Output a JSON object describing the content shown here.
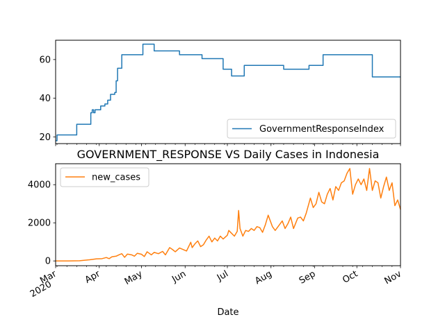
{
  "chart_data": [
    {
      "type": "line",
      "title": "",
      "xlabel": "",
      "ylabel": "",
      "x_range": [
        "2020-03-01",
        "2020-11-01"
      ],
      "ylim": [
        16.5,
        70
      ],
      "yticks": [
        20,
        40,
        60
      ],
      "legend": {
        "placement": "lower-right"
      },
      "series": [
        {
          "name": "GovernmentResponseIndex",
          "color": "#1f77b4",
          "step": true,
          "points": [
            [
              "2020-03-01",
              18.0
            ],
            [
              "2020-03-02",
              21.0
            ],
            [
              "2020-03-15",
              21.0
            ],
            [
              "2020-03-16",
              26.5
            ],
            [
              "2020-03-25",
              26.5
            ],
            [
              "2020-03-26",
              32.5
            ],
            [
              "2020-03-27",
              34.0
            ],
            [
              "2020-03-28",
              32.5
            ],
            [
              "2020-03-29",
              34.0
            ],
            [
              "2020-04-01",
              34.0
            ],
            [
              "2020-04-02",
              36.0
            ],
            [
              "2020-04-04",
              36.0
            ],
            [
              "2020-04-05",
              37.0
            ],
            [
              "2020-04-06",
              37.0
            ],
            [
              "2020-04-07",
              39.0
            ],
            [
              "2020-04-08",
              39.0
            ],
            [
              "2020-04-09",
              42.0
            ],
            [
              "2020-04-11",
              42.0
            ],
            [
              "2020-04-12",
              43.0
            ],
            [
              "2020-04-13",
              49.0
            ],
            [
              "2020-04-14",
              55.5
            ],
            [
              "2020-04-16",
              55.5
            ],
            [
              "2020-04-17",
              62.5
            ],
            [
              "2020-05-01",
              62.5
            ],
            [
              "2020-05-02",
              68.0
            ],
            [
              "2020-05-09",
              68.0
            ],
            [
              "2020-05-10",
              64.5
            ],
            [
              "2020-05-27",
              64.5
            ],
            [
              "2020-05-28",
              62.5
            ],
            [
              "2020-06-12",
              62.5
            ],
            [
              "2020-06-13",
              60.5
            ],
            [
              "2020-06-27",
              60.5
            ],
            [
              "2020-06-28",
              55.0
            ],
            [
              "2020-07-03",
              55.0
            ],
            [
              "2020-07-04",
              51.5
            ],
            [
              "2020-07-12",
              51.5
            ],
            [
              "2020-07-13",
              57.0
            ],
            [
              "2020-08-09",
              57.0
            ],
            [
              "2020-08-10",
              55.0
            ],
            [
              "2020-08-27",
              55.0
            ],
            [
              "2020-08-28",
              57.0
            ],
            [
              "2020-09-06",
              57.0
            ],
            [
              "2020-09-07",
              62.5
            ],
            [
              "2020-10-11",
              62.5
            ],
            [
              "2020-10-12",
              51.0
            ],
            [
              "2020-11-01",
              51.0
            ]
          ]
        }
      ]
    },
    {
      "type": "line",
      "title": "GOVERNMENT_RESPONSE VS Daily Cases in Indonesia",
      "xlabel": "Date",
      "ylabel": "",
      "x_range": [
        "2020-03-01",
        "2020-11-01"
      ],
      "ylim": [
        -250,
        5100
      ],
      "yticks": [
        0,
        2000,
        4000
      ],
      "legend": {
        "placement": "upper-left"
      },
      "xtick_labels": [
        {
          "label": "Mar",
          "sub": "2020",
          "date": "2020-03-01"
        },
        {
          "label": "Apr",
          "date": "2020-04-01"
        },
        {
          "label": "May",
          "date": "2020-05-01"
        },
        {
          "label": "Jun",
          "date": "2020-06-01"
        },
        {
          "label": "Jul",
          "date": "2020-07-01"
        },
        {
          "label": "Aug",
          "date": "2020-08-01"
        },
        {
          "label": "Sep",
          "date": "2020-09-01"
        },
        {
          "label": "Oct",
          "date": "2020-10-01"
        },
        {
          "label": "Nov",
          "date": "2020-11-01"
        }
      ],
      "series": [
        {
          "name": "new_cases",
          "color": "#ff7f0e",
          "points": [
            [
              "2020-03-01",
              0
            ],
            [
              "2020-03-10",
              0
            ],
            [
              "2020-03-18",
              10
            ],
            [
              "2020-03-25",
              60
            ],
            [
              "2020-03-30",
              110
            ],
            [
              "2020-04-03",
              120
            ],
            [
              "2020-04-06",
              180
            ],
            [
              "2020-04-08",
              120
            ],
            [
              "2020-04-10",
              220
            ],
            [
              "2020-04-13",
              250
            ],
            [
              "2020-04-15",
              320
            ],
            [
              "2020-04-17",
              380
            ],
            [
              "2020-04-19",
              190
            ],
            [
              "2020-04-21",
              360
            ],
            [
              "2020-04-24",
              320
            ],
            [
              "2020-04-26",
              250
            ],
            [
              "2020-04-28",
              400
            ],
            [
              "2020-05-01",
              350
            ],
            [
              "2020-05-03",
              230
            ],
            [
              "2020-05-05",
              480
            ],
            [
              "2020-05-08",
              320
            ],
            [
              "2020-05-10",
              450
            ],
            [
              "2020-05-13",
              380
            ],
            [
              "2020-05-16",
              500
            ],
            [
              "2020-05-18",
              320
            ],
            [
              "2020-05-21",
              700
            ],
            [
              "2020-05-23",
              600
            ],
            [
              "2020-05-25",
              480
            ],
            [
              "2020-05-28",
              680
            ],
            [
              "2020-06-02",
              520
            ],
            [
              "2020-06-05",
              980
            ],
            [
              "2020-06-06",
              700
            ],
            [
              "2020-06-08",
              900
            ],
            [
              "2020-06-10",
              1050
            ],
            [
              "2020-06-12",
              750
            ],
            [
              "2020-06-14",
              850
            ],
            [
              "2020-06-16",
              1100
            ],
            [
              "2020-06-18",
              1300
            ],
            [
              "2020-06-20",
              1000
            ],
            [
              "2020-06-22",
              1200
            ],
            [
              "2020-06-24",
              1050
            ],
            [
              "2020-06-26",
              1300
            ],
            [
              "2020-06-28",
              1150
            ],
            [
              "2020-07-01",
              1350
            ],
            [
              "2020-07-02",
              1600
            ],
            [
              "2020-07-04",
              1450
            ],
            [
              "2020-07-06",
              1300
            ],
            [
              "2020-07-08",
              1550
            ],
            [
              "2020-07-09",
              2650
            ],
            [
              "2020-07-10",
              1700
            ],
            [
              "2020-07-12",
              1300
            ],
            [
              "2020-07-14",
              1600
            ],
            [
              "2020-07-16",
              1550
            ],
            [
              "2020-07-18",
              1700
            ],
            [
              "2020-07-20",
              1600
            ],
            [
              "2020-07-22",
              1800
            ],
            [
              "2020-07-24",
              1750
            ],
            [
              "2020-07-26",
              1500
            ],
            [
              "2020-07-28",
              1900
            ],
            [
              "2020-07-30",
              2400
            ],
            [
              "2020-08-02",
              1800
            ],
            [
              "2020-08-04",
              1600
            ],
            [
              "2020-08-07",
              1900
            ],
            [
              "2020-08-09",
              2100
            ],
            [
              "2020-08-11",
              1700
            ],
            [
              "2020-08-13",
              1950
            ],
            [
              "2020-08-15",
              2300
            ],
            [
              "2020-08-17",
              1700
            ],
            [
              "2020-08-20",
              2250
            ],
            [
              "2020-08-22",
              2300
            ],
            [
              "2020-08-24",
              2100
            ],
            [
              "2020-08-26",
              2500
            ],
            [
              "2020-08-29",
              3300
            ],
            [
              "2020-08-31",
              2800
            ],
            [
              "2020-09-02",
              3000
            ],
            [
              "2020-09-04",
              3600
            ],
            [
              "2020-09-06",
              3100
            ],
            [
              "2020-09-08",
              3000
            ],
            [
              "2020-09-10",
              3500
            ],
            [
              "2020-09-12",
              3800
            ],
            [
              "2020-09-14",
              3200
            ],
            [
              "2020-09-16",
              3900
            ],
            [
              "2020-09-18",
              3700
            ],
            [
              "2020-09-20",
              4100
            ],
            [
              "2020-09-22",
              4200
            ],
            [
              "2020-09-24",
              4600
            ],
            [
              "2020-09-26",
              4850
            ],
            [
              "2020-09-28",
              3500
            ],
            [
              "2020-09-30",
              4000
            ],
            [
              "2020-10-02",
              4300
            ],
            [
              "2020-10-04",
              4000
            ],
            [
              "2020-10-06",
              4300
            ],
            [
              "2020-10-08",
              3700
            ],
            [
              "2020-10-10",
              4850
            ],
            [
              "2020-10-12",
              3700
            ],
            [
              "2020-10-14",
              4200
            ],
            [
              "2020-10-16",
              4100
            ],
            [
              "2020-10-18",
              3300
            ],
            [
              "2020-10-20",
              3900
            ],
            [
              "2020-10-22",
              4400
            ],
            [
              "2020-10-24",
              3700
            ],
            [
              "2020-10-26",
              4100
            ],
            [
              "2020-10-28",
              2900
            ],
            [
              "2020-10-30",
              3200
            ],
            [
              "2020-11-01",
              2700
            ]
          ]
        }
      ]
    }
  ]
}
